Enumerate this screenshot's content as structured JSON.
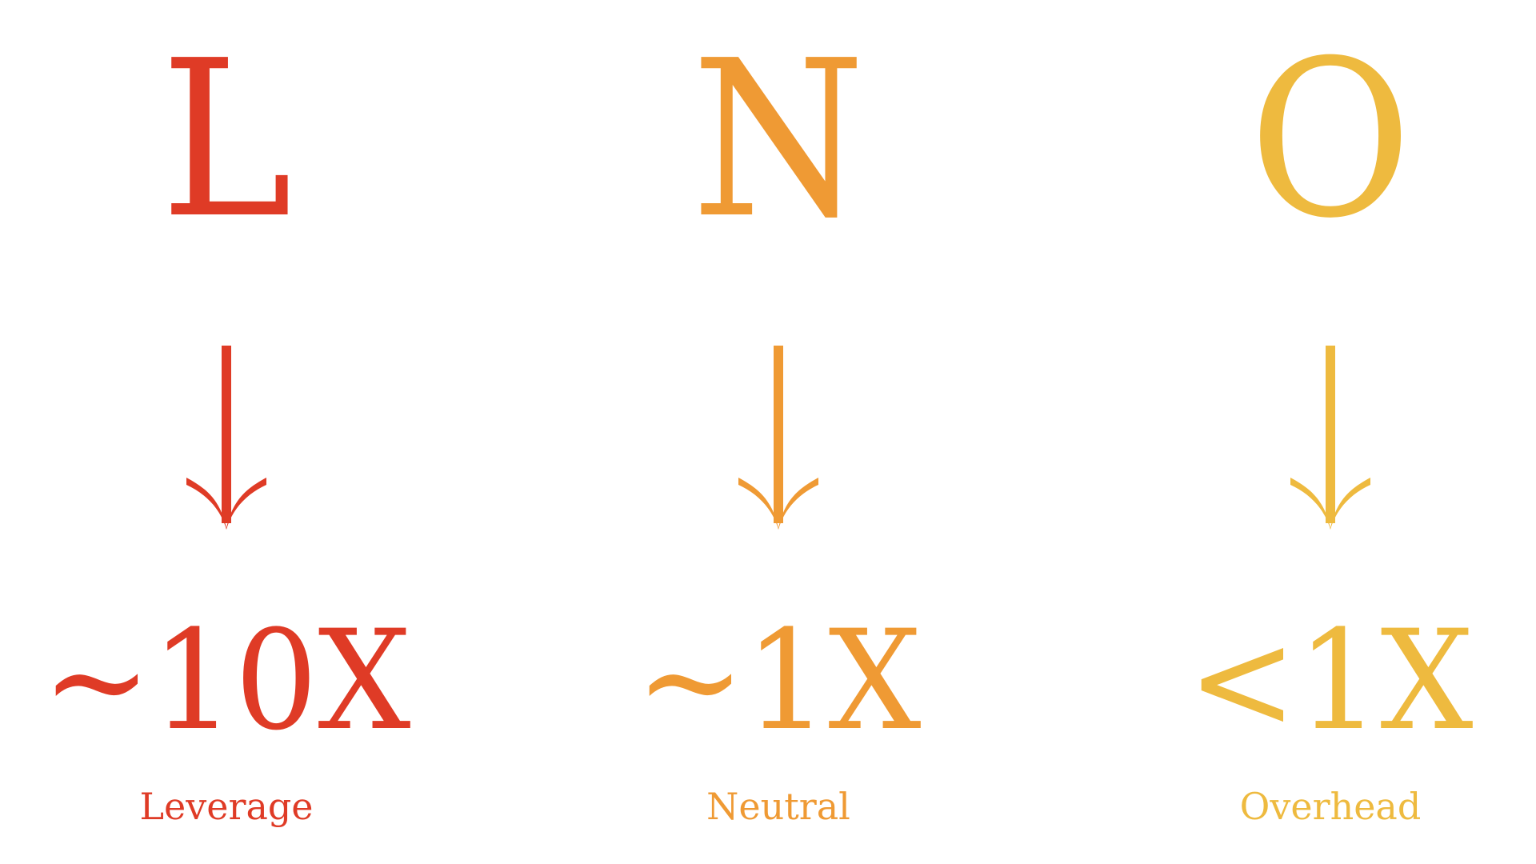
{
  "columns": [
    {
      "letter": "L",
      "multiplier": "~10X",
      "label": "Leverage",
      "color": "#df3b26",
      "arrow_icon": "arrow-down-icon"
    },
    {
      "letter": "N",
      "multiplier": "~1X",
      "label": "Neutral",
      "color": "#ef9a34",
      "arrow_icon": "arrow-down-icon"
    },
    {
      "letter": "O",
      "multiplier": "<1X",
      "label": "Overhead",
      "color": "#eeba3f",
      "arrow_icon": "arrow-down-icon"
    }
  ]
}
